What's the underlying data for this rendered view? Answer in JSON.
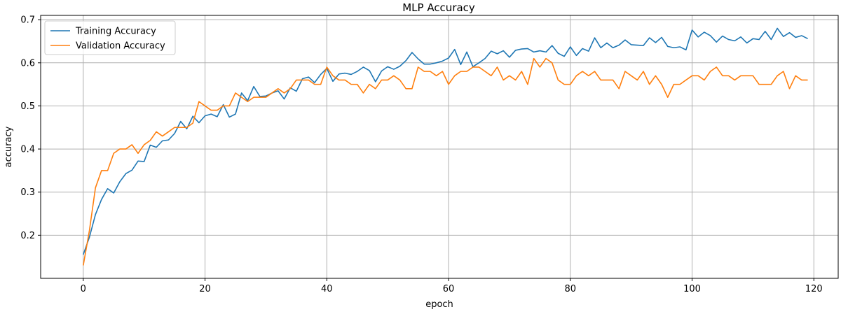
{
  "chart_data": {
    "type": "line",
    "title": "MLP Accuracy",
    "xlabel": "epoch",
    "ylabel": "accuracy",
    "xlim": [
      -7,
      124
    ],
    "ylim": [
      0.1,
      0.71
    ],
    "xticks": [
      0,
      20,
      40,
      60,
      80,
      100,
      120
    ],
    "yticks": [
      0.2,
      0.3,
      0.4,
      0.5,
      0.6,
      0.7
    ],
    "grid": true,
    "legend_position": "top-left",
    "series": [
      {
        "name": "Training Accuracy",
        "color": "#1f77b4",
        "values": [
          0.155,
          0.195,
          0.248,
          0.283,
          0.308,
          0.298,
          0.324,
          0.343,
          0.351,
          0.372,
          0.371,
          0.409,
          0.404,
          0.419,
          0.421,
          0.436,
          0.464,
          0.447,
          0.476,
          0.461,
          0.477,
          0.481,
          0.475,
          0.503,
          0.474,
          0.481,
          0.53,
          0.512,
          0.545,
          0.522,
          0.523,
          0.53,
          0.535,
          0.516,
          0.542,
          0.534,
          0.563,
          0.567,
          0.554,
          0.573,
          0.587,
          0.557,
          0.574,
          0.576,
          0.573,
          0.58,
          0.59,
          0.582,
          0.556,
          0.581,
          0.591,
          0.585,
          0.592,
          0.605,
          0.624,
          0.609,
          0.597,
          0.597,
          0.6,
          0.604,
          0.611,
          0.631,
          0.596,
          0.625,
          0.591,
          0.6,
          0.61,
          0.627,
          0.621,
          0.628,
          0.613,
          0.629,
          0.632,
          0.633,
          0.625,
          0.628,
          0.625,
          0.64,
          0.622,
          0.615,
          0.637,
          0.617,
          0.633,
          0.627,
          0.658,
          0.635,
          0.646,
          0.635,
          0.641,
          0.653,
          0.642,
          0.641,
          0.64,
          0.658,
          0.647,
          0.659,
          0.638,
          0.635,
          0.637,
          0.63,
          0.676,
          0.66,
          0.671,
          0.663,
          0.648,
          0.662,
          0.654,
          0.651,
          0.66,
          0.646,
          0.656,
          0.654,
          0.673,
          0.654,
          0.68,
          0.661,
          0.67,
          0.659,
          0.663,
          0.656
        ]
      },
      {
        "name": "Validation Accuracy",
        "color": "#ff7f0e",
        "values": [
          0.13,
          0.21,
          0.31,
          0.35,
          0.35,
          0.39,
          0.4,
          0.4,
          0.41,
          0.39,
          0.41,
          0.42,
          0.44,
          0.43,
          0.44,
          0.45,
          0.45,
          0.45,
          0.46,
          0.51,
          0.5,
          0.49,
          0.49,
          0.5,
          0.5,
          0.53,
          0.52,
          0.51,
          0.52,
          0.52,
          0.52,
          0.53,
          0.54,
          0.53,
          0.54,
          0.56,
          0.56,
          0.56,
          0.55,
          0.55,
          0.59,
          0.57,
          0.56,
          0.56,
          0.55,
          0.55,
          0.53,
          0.55,
          0.54,
          0.56,
          0.56,
          0.57,
          0.56,
          0.54,
          0.54,
          0.59,
          0.58,
          0.58,
          0.57,
          0.58,
          0.55,
          0.57,
          0.58,
          0.58,
          0.59,
          0.59,
          0.58,
          0.57,
          0.59,
          0.56,
          0.57,
          0.56,
          0.58,
          0.55,
          0.61,
          0.59,
          0.61,
          0.6,
          0.56,
          0.55,
          0.55,
          0.57,
          0.58,
          0.57,
          0.58,
          0.56,
          0.56,
          0.56,
          0.54,
          0.58,
          0.57,
          0.56,
          0.58,
          0.55,
          0.57,
          0.55,
          0.52,
          0.55,
          0.55,
          0.56,
          0.57,
          0.57,
          0.56,
          0.58,
          0.59,
          0.57,
          0.57,
          0.56,
          0.57,
          0.57,
          0.57,
          0.55,
          0.55,
          0.55,
          0.57,
          0.58,
          0.54,
          0.57,
          0.56,
          0.56
        ]
      }
    ]
  }
}
